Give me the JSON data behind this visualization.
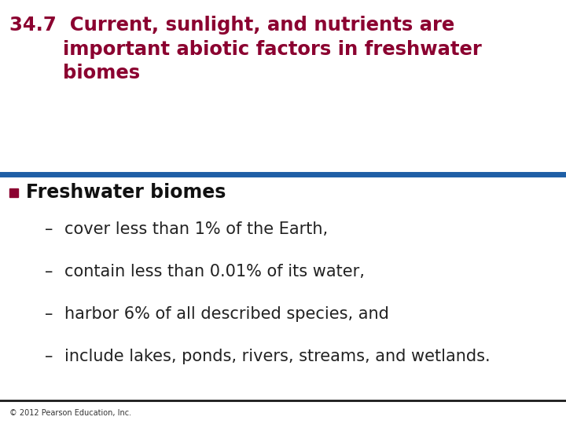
{
  "title_number": "34.7",
  "title_color": "#8B0030",
  "title_line1": "34.7  Current, sunlight, and nutrients are",
  "title_line2": "        important abiotic factors in freshwater",
  "title_line3": "        biomes",
  "separator_color": "#1F5FA6",
  "bullet_color": "#8B0030",
  "bullet_text": "Freshwater biomes",
  "subbullets": [
    "cover less than 1% of the Earth,",
    "contain less than 0.01% of its water,",
    "harbor 6% of all described species, and",
    "include lakes, ponds, rivers, streams, and wetlands."
  ],
  "sub_color": "#222222",
  "footer_text": "© 2012 Pearson Education, Inc.",
  "footer_color": "#333333",
  "bg_color": "#ffffff",
  "bottom_line_color": "#1a1a1a",
  "body_font_size": 15,
  "title_font_size": 17.5,
  "bullet_font_size": 17
}
